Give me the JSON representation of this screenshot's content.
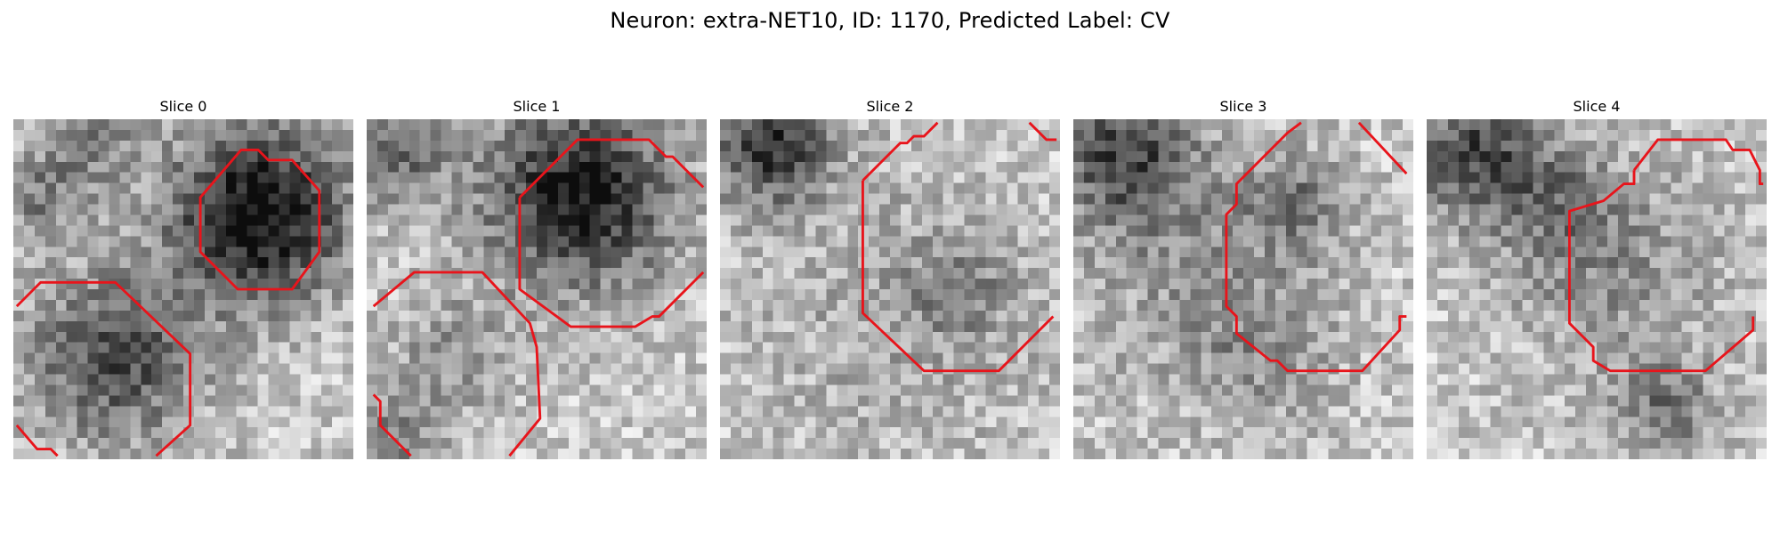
{
  "figure": {
    "title": "Neuron: extra-NET10, ID: 1170, Predicted Label: CV"
  },
  "panels": [
    {
      "title": "Slice 0",
      "dark_blobs": [
        [
          0.72,
          0.28,
          0.18,
          2.2
        ],
        [
          0.3,
          0.7,
          0.17,
          1.4
        ],
        [
          0.08,
          0.22,
          0.1,
          0.8
        ],
        [
          0.25,
          0.05,
          0.1,
          0.7
        ]
      ],
      "contour_paths": [
        "M 0.55 0.23 L 0.67 0.09 L 0.72 0.09 L 0.75 0.12 L 0.82 0.12 L 0.90 0.21 L 0.90 0.39 L 0.82 0.50 L 0.66 0.50 L 0.55 0.39 Z",
        "M 0.01 0.55 L 0.08 0.48 L 0.30 0.48 L 0.52 0.69 L 0.52 0.90 L 0.42 0.99",
        "M 0.01 0.90 L 0.07 0.97 L 0.11 0.97 L 0.13 0.99"
      ]
    },
    {
      "title": "Slice 1",
      "dark_blobs": [
        [
          0.62,
          0.22,
          0.19,
          2.0
        ],
        [
          0.08,
          0.12,
          0.11,
          1.0
        ],
        [
          0.25,
          0.7,
          0.12,
          0.6
        ],
        [
          0.06,
          0.95,
          0.1,
          0.8
        ]
      ],
      "contour_paths": [
        "M 0.45 0.23 L 0.62 0.06 L 0.83 0.06 L 0.88 0.11 L 0.90 0.11 L 0.99 0.20",
        "M 0.45 0.23 L 0.45 0.50 L 0.60 0.61 L 0.79 0.61 L 0.84 0.58 L 0.86 0.58 L 0.99 0.45",
        "M 0.02 0.55 L 0.14 0.45 L 0.34 0.45 L 0.48 0.60 L 0.50 0.67 L 0.51 0.88 L 0.42 0.99",
        "M 0.02 0.81 L 0.04 0.83 L 0.04 0.90 L 0.13 0.99"
      ]
    },
    {
      "title": "Slice 2",
      "dark_blobs": [
        [
          0.15,
          0.08,
          0.12,
          1.6
        ],
        [
          0.55,
          0.55,
          0.32,
          0.35
        ],
        [
          0.7,
          0.5,
          0.1,
          0.6
        ]
      ],
      "contour_paths": [
        "M 0.42 0.18 L 0.53 0.07 L 0.55 0.07 L 0.57 0.05 L 0.60 0.05 L 0.64 0.01",
        "M 0.42 0.18 L 0.42 0.57 L 0.60 0.74 L 0.82 0.74 L 0.98 0.58",
        "M 0.91 0.01 L 0.96 0.06 L 0.99 0.06"
      ]
    },
    {
      "title": "Slice 3",
      "dark_blobs": [
        [
          0.15,
          0.1,
          0.14,
          1.4
        ],
        [
          0.35,
          0.4,
          0.25,
          0.5
        ],
        [
          0.65,
          0.25,
          0.1,
          0.8
        ],
        [
          0.55,
          0.7,
          0.15,
          0.5
        ]
      ],
      "contour_paths": [
        "M 0.67 0.01 L 0.63 0.04 L 0.48 0.19 L 0.48 0.25 L 0.45 0.28 L 0.45 0.55 L 0.48 0.58 L 0.48 0.63 L 0.58 0.71 L 0.60 0.71 L 0.63 0.74 L 0.85 0.74 L 0.96 0.62 L 0.96 0.58 L 0.98 0.58",
        "M 0.84 0.01 L 0.98 0.16"
      ]
    },
    {
      "title": "Slice 4",
      "dark_blobs": [
        [
          0.15,
          0.1,
          0.14,
          1.4
        ],
        [
          0.55,
          0.45,
          0.22,
          0.6
        ],
        [
          0.7,
          0.85,
          0.1,
          0.9
        ],
        [
          0.4,
          0.25,
          0.12,
          0.6
        ]
      ],
      "contour_paths": [
        "M 0.61 0.15 L 0.61 0.19 L 0.58 0.19 L 0.52 0.24 L 0.42 0.27 L 0.42 0.60 L 0.49 0.67 L 0.49 0.71 L 0.54 0.74 L 0.82 0.74 L 0.96 0.62 L 0.96 0.58",
        "M 0.61 0.15 L 0.68 0.06 L 0.88 0.06 L 0.90 0.09 L 0.95 0.09 L 0.98 0.15 L 0.98 0.19 L 0.99 0.19"
      ]
    }
  ],
  "overlay_color": "#e8141b"
}
